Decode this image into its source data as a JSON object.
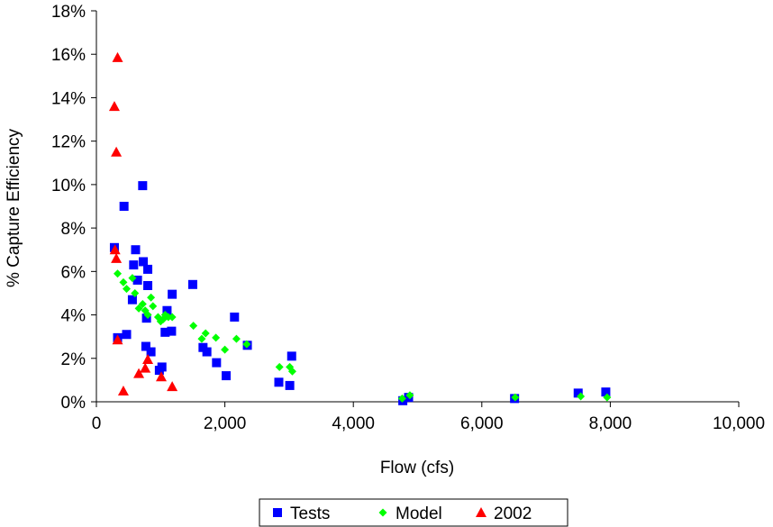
{
  "chart_data": {
    "type": "scatter",
    "xlabel": "Flow (cfs)",
    "ylabel": "% Capture Efficiency",
    "xlim": [
      0,
      10000
    ],
    "ylim": [
      0,
      18
    ],
    "x_ticks": [
      0,
      2000,
      4000,
      6000,
      8000,
      10000
    ],
    "x_tick_labels": [
      "0",
      "2,000",
      "4,000",
      "6,000",
      "8,000",
      "10,000"
    ],
    "y_ticks": [
      0,
      2,
      4,
      6,
      8,
      10,
      12,
      14,
      16,
      18
    ],
    "y_tick_labels": [
      "0%",
      "2%",
      "4%",
      "6%",
      "8%",
      "10%",
      "12%",
      "14%",
      "16%",
      "18%"
    ],
    "grid": false,
    "legend_position": "bottom",
    "series": [
      {
        "name": "Tests",
        "marker": "square",
        "color": "#0000FF",
        "points": [
          [
            280,
            7.1
          ],
          [
            330,
            2.95
          ],
          [
            430,
            9.0
          ],
          [
            470,
            3.1
          ],
          [
            560,
            4.7
          ],
          [
            580,
            6.3
          ],
          [
            610,
            7.0
          ],
          [
            640,
            5.6
          ],
          [
            720,
            9.95
          ],
          [
            730,
            6.45
          ],
          [
            770,
            2.55
          ],
          [
            780,
            3.85
          ],
          [
            800,
            6.1
          ],
          [
            800,
            5.35
          ],
          [
            850,
            2.3
          ],
          [
            980,
            1.45
          ],
          [
            1020,
            1.6
          ],
          [
            1070,
            3.2
          ],
          [
            1100,
            4.2
          ],
          [
            1180,
            4.95
          ],
          [
            1170,
            3.25
          ],
          [
            1500,
            5.4
          ],
          [
            1660,
            2.5
          ],
          [
            1720,
            2.3
          ],
          [
            1870,
            1.8
          ],
          [
            2020,
            1.2
          ],
          [
            2150,
            3.9
          ],
          [
            2350,
            2.6
          ],
          [
            2840,
            0.9
          ],
          [
            3010,
            0.75
          ],
          [
            3040,
            2.1
          ],
          [
            4770,
            0.05
          ],
          [
            4860,
            0.2
          ],
          [
            6510,
            0.15
          ],
          [
            7500,
            0.4
          ],
          [
            7930,
            0.45
          ]
        ]
      },
      {
        "name": "Model",
        "marker": "diamond",
        "color": "#00FF00",
        "points": [
          [
            330,
            5.9
          ],
          [
            420,
            5.5
          ],
          [
            470,
            5.2
          ],
          [
            560,
            5.7
          ],
          [
            600,
            5.0
          ],
          [
            660,
            4.3
          ],
          [
            720,
            4.5
          ],
          [
            760,
            4.2
          ],
          [
            800,
            4.0
          ],
          [
            850,
            4.8
          ],
          [
            880,
            4.4
          ],
          [
            960,
            3.9
          ],
          [
            1000,
            3.7
          ],
          [
            1040,
            3.8
          ],
          [
            1070,
            4.0
          ],
          [
            1120,
            3.9
          ],
          [
            1180,
            3.9
          ],
          [
            1510,
            3.5
          ],
          [
            1640,
            2.9
          ],
          [
            1700,
            3.15
          ],
          [
            1860,
            2.95
          ],
          [
            2000,
            2.4
          ],
          [
            2180,
            2.9
          ],
          [
            2340,
            2.65
          ],
          [
            2850,
            1.6
          ],
          [
            3010,
            1.6
          ],
          [
            3050,
            1.4
          ],
          [
            4760,
            0.15
          ],
          [
            4880,
            0.3
          ],
          [
            6520,
            0.2
          ],
          [
            7540,
            0.25
          ],
          [
            7950,
            0.2
          ]
        ]
      },
      {
        "name": "2002",
        "marker": "triangle",
        "color": "#FF0000",
        "points": [
          [
            280,
            13.6
          ],
          [
            310,
            11.5
          ],
          [
            330,
            15.85
          ],
          [
            290,
            7.0
          ],
          [
            310,
            6.6
          ],
          [
            330,
            2.85
          ],
          [
            420,
            0.5
          ],
          [
            660,
            1.3
          ],
          [
            760,
            1.55
          ],
          [
            800,
            1.95
          ],
          [
            1010,
            1.15
          ],
          [
            1180,
            0.7
          ]
        ]
      }
    ]
  }
}
